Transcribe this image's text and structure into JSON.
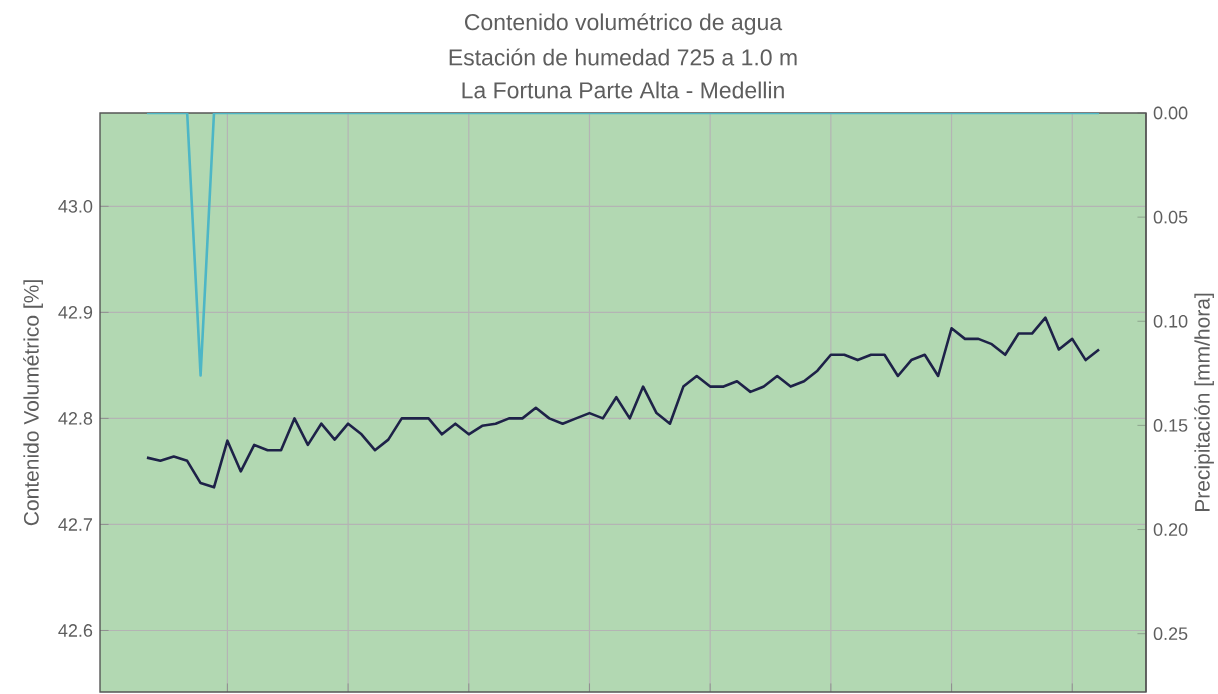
{
  "chart_data": {
    "type": "line",
    "title": "Contenido volumétrico de agua",
    "subtitle": "Estación de humedad 725 a 1.0 m",
    "annotations": [
      "La Fortuna Parte Alta - Medellin"
    ],
    "ylabel": "Contenido Volumétrico [%]",
    "y2label": "Precipitación [mm/hora]",
    "categories": [
      null,
      null,
      null,
      null,
      null,
      null,
      null,
      null,
      null,
      null,
      null,
      null,
      null,
      null,
      null,
      null,
      null,
      null,
      null,
      null,
      null,
      null,
      null,
      null,
      null,
      null,
      null,
      null,
      null,
      null,
      null,
      null,
      null,
      null,
      null,
      null,
      null,
      null,
      null,
      null,
      null,
      null,
      null,
      null,
      null,
      null,
      null,
      null,
      null,
      null,
      null,
      null,
      null,
      null,
      null,
      null,
      null,
      null,
      null,
      null,
      null,
      null,
      null,
      null,
      null,
      null,
      null,
      null,
      null,
      null,
      null,
      null
    ],
    "ylim": [
      42.542,
      43.088
    ],
    "yticks": [
      {
        "value": 42.6,
        "label": "42.6"
      },
      {
        "value": 42.7,
        "label": "42.7"
      },
      {
        "value": 42.8,
        "label": "42.8"
      },
      {
        "value": 42.9,
        "label": "42.9"
      },
      {
        "value": 43.0,
        "label": "43.0"
      }
    ],
    "y2lim": [
      0.278,
      0
    ],
    "y2ticks": [
      {
        "value": 0,
        "label": "0.00"
      },
      {
        "value": 0.05,
        "label": "0.05"
      },
      {
        "value": 0.1,
        "label": "0.10"
      },
      {
        "value": 0.15,
        "label": "0.15"
      },
      {
        "value": 0.2,
        "label": "0.20"
      },
      {
        "value": 0.25,
        "label": "0.25"
      }
    ],
    "grid": true,
    "tick_labels": "y",
    "series": [
      {
        "color": "#1e2248",
        "values": [
          42.763,
          42.76,
          42.764,
          42.76,
          42.739,
          42.735,
          42.779,
          42.75,
          42.775,
          42.77,
          42.77,
          42.8,
          42.775,
          42.795,
          42.78,
          42.795,
          42.785,
          42.77,
          42.78,
          42.8,
          42.8,
          42.8,
          42.785,
          42.795,
          42.785,
          42.793,
          42.795,
          42.8,
          42.8,
          42.81,
          42.8,
          42.795,
          42.8,
          42.805,
          42.8,
          42.82,
          42.8,
          42.83,
          42.805,
          42.795,
          42.83,
          42.84,
          42.83,
          42.83,
          42.835,
          42.825,
          42.83,
          42.84,
          42.83,
          42.835,
          42.845,
          42.86,
          42.86,
          42.855,
          42.86,
          42.86,
          42.84,
          42.855,
          42.86,
          42.84,
          42.885,
          42.875,
          42.875,
          42.87,
          42.86,
          42.88,
          42.88,
          42.895,
          42.865,
          42.875,
          42.855,
          42.865
        ]
      },
      {
        "color": "#4db6c6",
        "axis": "y2",
        "values": [
          0,
          0,
          0,
          0,
          0.126,
          0,
          0,
          0,
          0,
          0,
          0,
          0,
          0,
          0,
          0,
          0,
          0,
          0,
          0,
          0,
          0,
          0,
          0,
          0,
          0,
          0,
          0,
          0,
          0,
          0,
          0,
          0,
          0,
          0,
          0,
          0,
          0,
          0,
          0,
          0,
          0,
          0,
          0,
          0,
          0,
          0,
          0,
          0,
          0,
          0,
          0,
          0,
          0,
          0,
          0,
          0,
          0,
          0,
          0,
          0,
          0,
          0,
          0,
          0,
          0,
          0,
          0,
          0,
          0,
          0,
          0,
          0
        ]
      }
    ]
  }
}
